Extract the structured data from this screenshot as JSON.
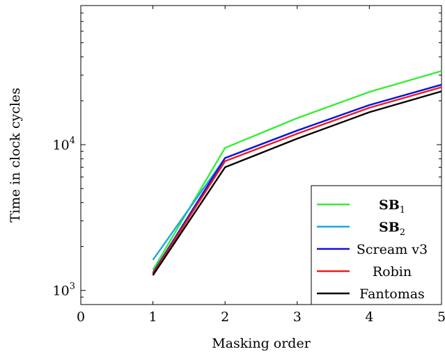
{
  "chart_data": {
    "type": "line",
    "xlabel": "Masking order",
    "ylabel": "Time in clock cycles",
    "y_scale": "log",
    "xlim": [
      0,
      5
    ],
    "ylim": [
      800,
      90000
    ],
    "x_ticks": [
      "0",
      "1",
      "2",
      "3",
      "4",
      "5"
    ],
    "y_ticks": [
      {
        "base": "10",
        "exp": "3",
        "value": 1000
      },
      {
        "base": "10",
        "exp": "4",
        "value": 10000
      }
    ],
    "grid": false,
    "legend_position": "bottom-right",
    "x": [
      1,
      2,
      3,
      4,
      5
    ],
    "series": [
      {
        "name": "SB",
        "subscript": "1",
        "bold": true,
        "color": "#33ee33",
        "values": [
          1380,
          9500,
          15200,
          23000,
          32000
        ]
      },
      {
        "name": "SB",
        "subscript": "2",
        "bold": true,
        "color": "#1ca6dd",
        "values": [
          1620,
          8100,
          12500,
          18700,
          25800
        ]
      },
      {
        "name": "Scream v3",
        "subscript": "",
        "bold": false,
        "color": "#1111dd",
        "values": [
          1320,
          8100,
          12500,
          18700,
          25800
        ]
      },
      {
        "name": "Robin",
        "subscript": "",
        "bold": false,
        "color": "#ee1c1c",
        "values": [
          1300,
          7700,
          11900,
          17900,
          24800
        ]
      },
      {
        "name": "Fantomas",
        "subscript": "",
        "bold": false,
        "color": "#000000",
        "values": [
          1270,
          7000,
          11000,
          16700,
          23200
        ]
      }
    ]
  }
}
